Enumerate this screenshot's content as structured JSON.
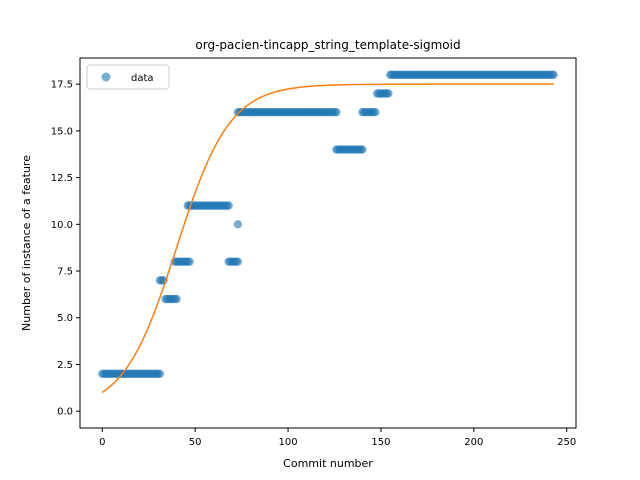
{
  "chart_data": {
    "type": "scatter",
    "title": "org-pacien-tincapp_string_template-sigmoid",
    "xlabel": "Commit number",
    "ylabel": "Number of instance of a feature",
    "xlim": [
      -12,
      255
    ],
    "ylim": [
      -0.9,
      18.9
    ],
    "xticks": [
      0,
      50,
      100,
      150,
      200,
      250
    ],
    "yticks": [
      0.0,
      2.5,
      5.0,
      7.5,
      10.0,
      12.5,
      15.0,
      17.5
    ],
    "xtick_labels": [
      "0",
      "50",
      "100",
      "150",
      "200",
      "250"
    ],
    "ytick_labels": [
      "0.0",
      "2.5",
      "5.0",
      "7.5",
      "10.0",
      "12.5",
      "15.0",
      "17.5"
    ],
    "grid": false,
    "legend": {
      "position": "top-left",
      "entries": [
        "data"
      ]
    },
    "colors": {
      "data": "#1f77b4",
      "fit": "#ff7f0e"
    },
    "series": [
      {
        "name": "data",
        "kind": "scatter",
        "segments": [
          {
            "x_start": 0,
            "x_end": 31,
            "y": 2
          },
          {
            "x_start": 31,
            "x_end": 33,
            "y": 7
          },
          {
            "x_start": 34,
            "x_end": 40,
            "y": 6
          },
          {
            "x_start": 39,
            "x_end": 47,
            "y": 8
          },
          {
            "x_start": 46,
            "x_end": 68,
            "y": 11
          },
          {
            "x_start": 68,
            "x_end": 73,
            "y": 8
          },
          {
            "x_start": 73,
            "x_end": 73,
            "y": 10
          },
          {
            "x_start": 73,
            "x_end": 126,
            "y": 16
          },
          {
            "x_start": 126,
            "x_end": 140,
            "y": 14
          },
          {
            "x_start": 140,
            "x_end": 147,
            "y": 16
          },
          {
            "x_start": 148,
            "x_end": 154,
            "y": 17
          },
          {
            "x_start": 155,
            "x_end": 243,
            "y": 18
          }
        ]
      },
      {
        "kind": "line",
        "model": "sigmoid",
        "L": 17.5,
        "k": 0.07,
        "x0": 40,
        "x_range": [
          0,
          243
        ]
      }
    ]
  }
}
